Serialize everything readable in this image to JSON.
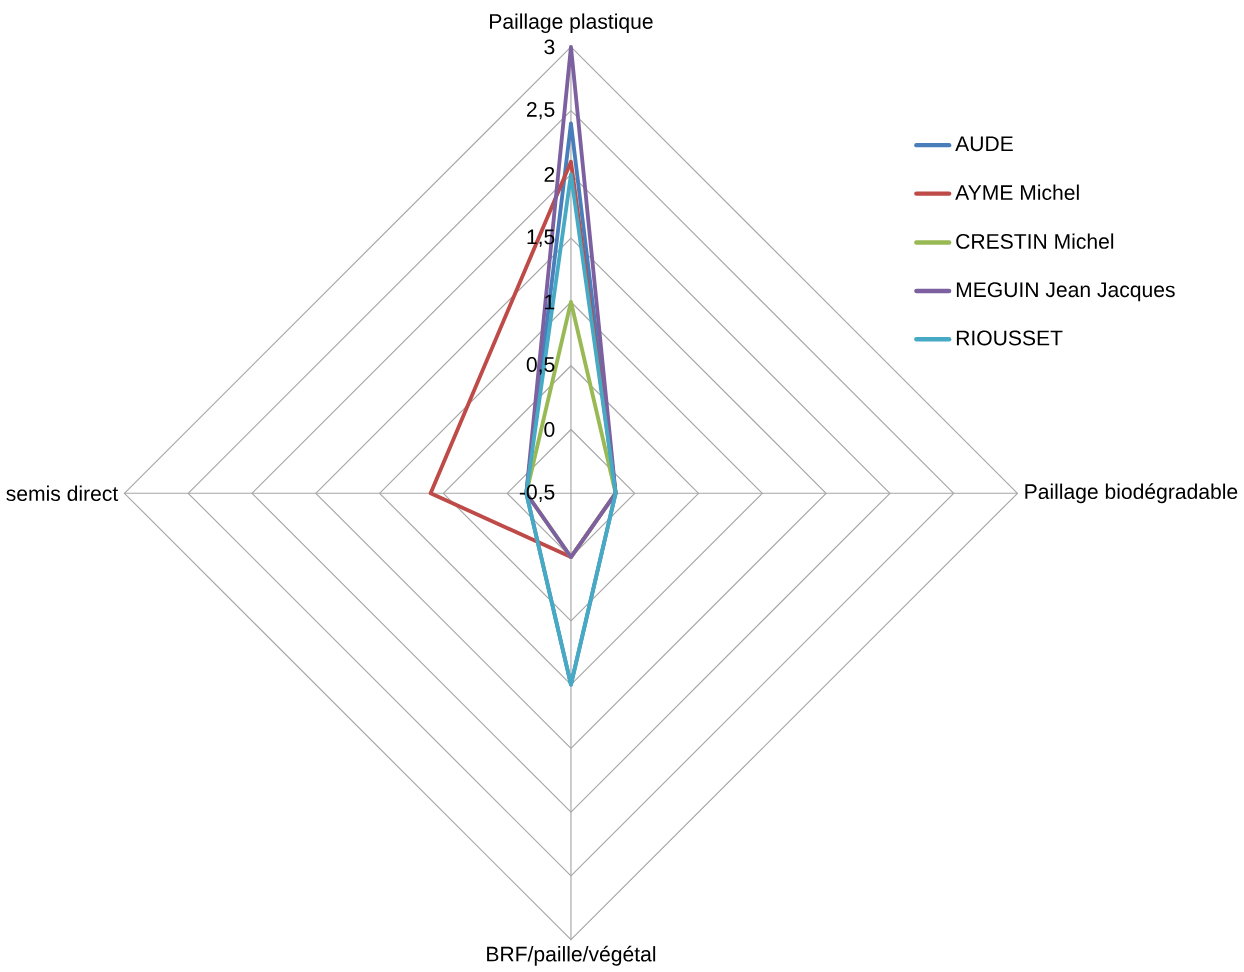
{
  "chart_data": {
    "type": "radar",
    "categories": [
      "Paillage plastique",
      "Paillage biodégradable",
      "BRF/paille/végétal",
      "semis direct"
    ],
    "series": [
      {
        "name": "AUDE",
        "color": "#4a7ebb",
        "values": [
          2.4,
          -0.15,
          1.0,
          -0.15
        ]
      },
      {
        "name": "AYME Michel",
        "color": "#be4b48",
        "values": [
          2.1,
          -0.15,
          0,
          0.6
        ]
      },
      {
        "name": "CRESTIN Michel",
        "color": "#98b954",
        "values": [
          1.0,
          -0.15,
          0,
          -0.15
        ]
      },
      {
        "name": "MEGUIN Jean Jacques",
        "color": "#7d60a0",
        "values": [
          3,
          -0.15,
          0,
          -0.15
        ]
      },
      {
        "name": "RIOUSSET",
        "color": "#46aac5",
        "values": [
          2,
          -0.15,
          1.0,
          -0.15
        ]
      }
    ],
    "ylim": [
      -0.5,
      3
    ],
    "yticks": [
      {
        "value": -0.5,
        "label": "-0,5"
      },
      0,
      {
        "value": 0.5,
        "label": "0,5"
      },
      1,
      {
        "value": 1.5,
        "label": "1,5"
      },
      2,
      {
        "value": 2.5,
        "label": "2,5"
      },
      3
    ],
    "grid": true,
    "legend": "right"
  }
}
